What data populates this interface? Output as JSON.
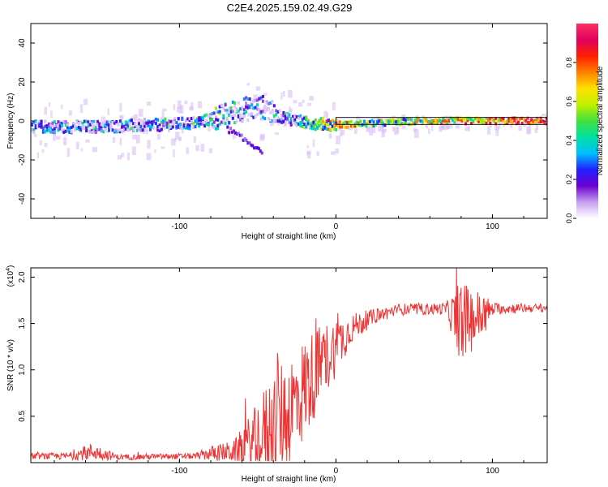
{
  "title": "C2E4.2025.159.02.49.G29",
  "chart_data": [
    {
      "type": "heatmap",
      "xlabel": "Height of straight line (km)",
      "ylabel": "Frequency (Hz)",
      "xlim": [
        -195,
        135
      ],
      "ylim": [
        -50,
        50
      ],
      "xticks": [
        -100,
        0,
        100
      ],
      "yticks": [
        -40,
        -20,
        0,
        20,
        40
      ],
      "colorbar": {
        "label": "Normalized spectral amplitude",
        "range": [
          0,
          1
        ],
        "ticks": [
          0.0,
          0.2,
          0.4,
          0.6,
          0.8
        ],
        "colormap": [
          "#ffffff",
          "#c8a0f0",
          "#6a00d0",
          "#2020ff",
          "#00c0ff",
          "#00e0a0",
          "#40e040",
          "#c0f000",
          "#ffe000",
          "#ff8000",
          "#ff2000",
          "#e00060",
          "#ff3060"
        ]
      },
      "ridge": [
        {
          "x": -195,
          "y": -3,
          "a": 0.3
        },
        {
          "x": -150,
          "y": -3,
          "a": 0.3
        },
        {
          "x": -110,
          "y": -2,
          "a": 0.35
        },
        {
          "x": -90,
          "y": -1,
          "a": 0.35
        },
        {
          "x": -75,
          "y": 2,
          "a": 0.4
        },
        {
          "x": -60,
          "y": 6,
          "a": 0.25
        },
        {
          "x": -45,
          "y": 7,
          "a": 0.2
        },
        {
          "x": -40,
          "y": 3,
          "a": 0.2
        },
        {
          "x": -20,
          "y": -1,
          "a": 0.45
        },
        {
          "x": 0,
          "y": -2,
          "a": 0.7
        },
        {
          "x": 30,
          "y": -1,
          "a": 0.5
        },
        {
          "x": 60,
          "y": 0,
          "a": 0.6
        },
        {
          "x": 90,
          "y": 0,
          "a": 0.75
        },
        {
          "x": 135,
          "y": 0,
          "a": 0.9
        }
      ],
      "branch": [
        {
          "x": -70,
          "y": -4
        },
        {
          "x": -55,
          "y": -12
        },
        {
          "x": -48,
          "y": -15
        }
      ]
    },
    {
      "type": "line",
      "xlabel": "Height of straight line (km)",
      "ylabel": "SNR (10 * v/v)",
      "yscale_label": "(x10",
      "yscale_exp": "4",
      "xlim": [
        -195,
        135
      ],
      "ylim": [
        0,
        2.1
      ],
      "xticks": [
        -100,
        0,
        100
      ],
      "yticks": [
        0.5,
        1.0,
        1.5,
        2.0
      ],
      "ytick_labels": [
        "0.5",
        "1.0",
        "1.5",
        "2.0"
      ],
      "color": "#ee3333",
      "envelope": [
        {
          "x": -195,
          "base": 0.07,
          "amp": 0.04
        },
        {
          "x": -170,
          "base": 0.07,
          "amp": 0.05
        },
        {
          "x": -155,
          "base": 0.12,
          "amp": 0.12
        },
        {
          "x": -140,
          "base": 0.06,
          "amp": 0.04
        },
        {
          "x": -90,
          "base": 0.07,
          "amp": 0.04
        },
        {
          "x": -80,
          "base": 0.1,
          "amp": 0.1
        },
        {
          "x": -65,
          "base": 0.12,
          "amp": 0.15
        },
        {
          "x": -50,
          "base": 0.25,
          "amp": 0.5
        },
        {
          "x": -40,
          "base": 0.4,
          "amp": 0.8
        },
        {
          "x": -30,
          "base": 0.55,
          "amp": 0.8
        },
        {
          "x": -20,
          "base": 0.8,
          "amp": 0.7
        },
        {
          "x": -10,
          "base": 1.05,
          "amp": 0.55
        },
        {
          "x": 0,
          "base": 1.25,
          "amp": 0.4
        },
        {
          "x": 10,
          "base": 1.45,
          "amp": 0.2
        },
        {
          "x": 25,
          "base": 1.58,
          "amp": 0.1
        },
        {
          "x": 40,
          "base": 1.65,
          "amp": 0.08
        },
        {
          "x": 70,
          "base": 1.66,
          "amp": 0.08
        },
        {
          "x": 80,
          "base": 1.5,
          "amp": 0.55
        },
        {
          "x": 95,
          "base": 1.6,
          "amp": 0.3
        },
        {
          "x": 100,
          "base": 1.66,
          "amp": 0.08
        },
        {
          "x": 135,
          "base": 1.67,
          "amp": 0.05
        }
      ]
    }
  ]
}
